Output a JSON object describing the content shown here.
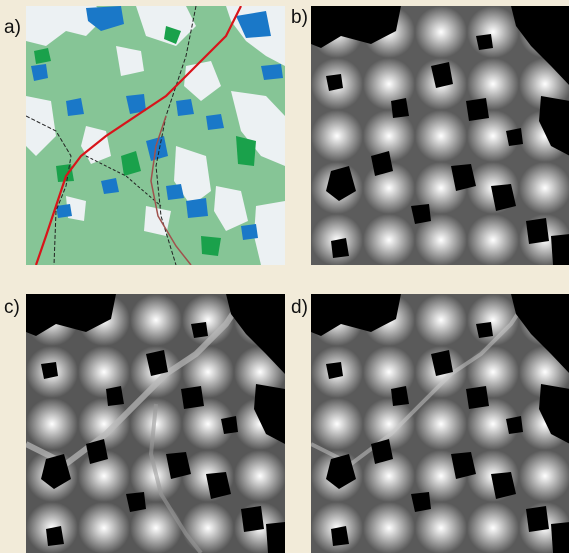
{
  "panels": [
    {
      "label": "a)",
      "kind": "land-cover-map"
    },
    {
      "label": "b)",
      "kind": "cost-surface"
    },
    {
      "label": "c)",
      "kind": "cost-surface"
    },
    {
      "label": "d)",
      "kind": "cost-surface"
    }
  ],
  "colors": {
    "background": "#f2ebd9",
    "forest": "#86c596",
    "dense_forest": "#1aa14b",
    "water": "#1a78c8",
    "open_land": "#ecf1f3",
    "road": "#d8141a",
    "track": "#222222",
    "obstacle": "#000000"
  }
}
